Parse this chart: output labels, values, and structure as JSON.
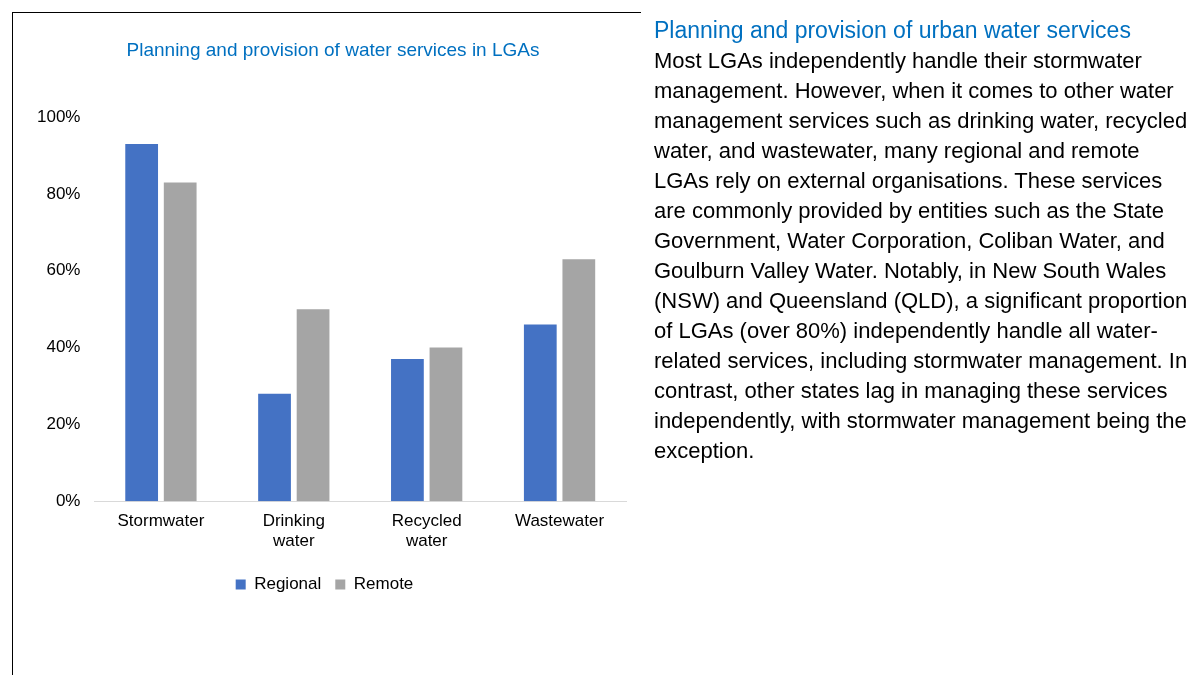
{
  "chart_data": {
    "type": "bar",
    "title": "Planning and provision of water services in LGAs",
    "categories": [
      "Stormwater",
      "Drinking water",
      "Recycled water",
      "Wastewater"
    ],
    "series": [
      {
        "name": "Regional",
        "color": "#4472c4",
        "values": [
          93,
          28,
          37,
          46
        ]
      },
      {
        "name": "Remote",
        "color": "#a5a5a5",
        "values": [
          83,
          50,
          40,
          63
        ]
      }
    ],
    "ylim": [
      0,
      100
    ],
    "yticks": [
      {
        "value": 0,
        "label": "0%"
      },
      {
        "value": 20,
        "label": "20%"
      },
      {
        "value": 40,
        "label": "40%"
      },
      {
        "value": 60,
        "label": "60%"
      },
      {
        "value": 80,
        "label": "80%"
      },
      {
        "value": 100,
        "label": "100%"
      }
    ],
    "grid": false,
    "legend": "bottom",
    "annotations": [
      "Planning and provision of urban water services",
      "Most LGAs independently handle their stormwater management. However, when it comes to other water management services such as drinking water, recycled water, and wastewater, many regional and remote LGAs rely on external organisations. These services are commonly provided by entities such as the State Government, Water Corporation, Coliban Water, and Goulburn Valley Water. Notably, in New South Wales (NSW) and Queensland (QLD), a significant proportion of LGAs (over 80%) independently handle all water-related services, including stormwater management. In contrast, other states lag in managing these services independently, with stormwater management being the exception."
    ]
  }
}
